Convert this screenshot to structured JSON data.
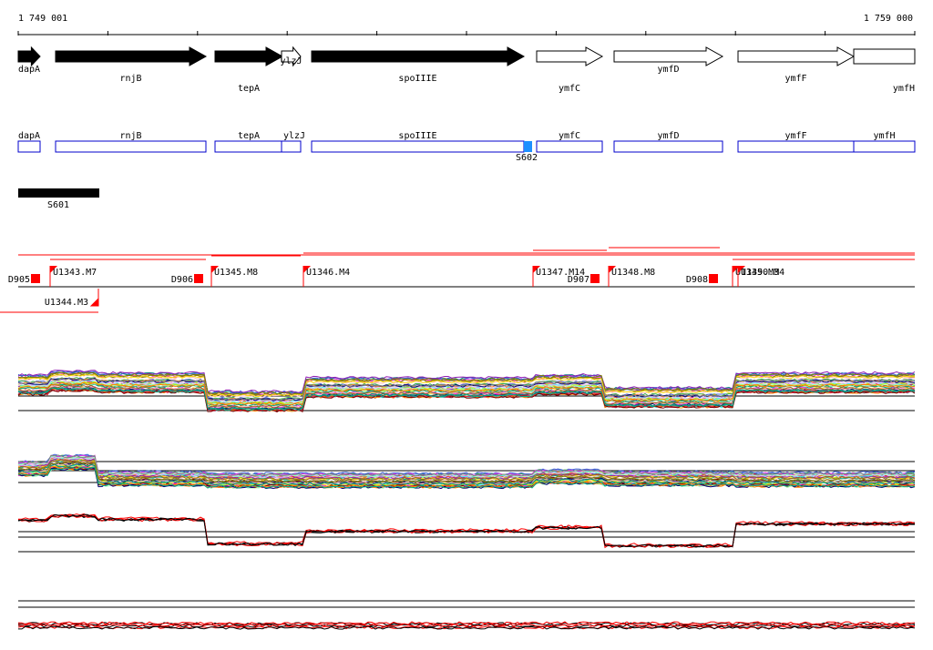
{
  "ruler": {
    "start_label": "1 749 001",
    "end_label": "1 759 000"
  },
  "genes_filled": [
    {
      "label": "dapA",
      "filled": true,
      "dir": "fwd"
    },
    {
      "label": "rnjB",
      "filled": true,
      "dir": "fwd"
    },
    {
      "label": "tepA",
      "filled": true,
      "dir": "fwd"
    },
    {
      "label": "ylzJ",
      "filled": false,
      "dir": "fwd"
    },
    {
      "label": "spoIIIE",
      "filled": true,
      "dir": "fwd"
    },
    {
      "label": "ymfC",
      "filled": false,
      "dir": "fwd"
    },
    {
      "label": "ymfD",
      "filled": false,
      "dir": "fwd"
    },
    {
      "label": "ymfF",
      "filled": false,
      "dir": "fwd"
    },
    {
      "label": "ymfH",
      "filled": false,
      "dir": "fwd"
    }
  ],
  "genes_boxes": [
    "dapA",
    "rnjB",
    "tepA",
    "ylzJ",
    "spoIIIE",
    "ymfC",
    "ymfD",
    "ymfF",
    "ymfH"
  ],
  "feature_s602": "S602",
  "feature_s601": "S601",
  "segments": [
    {
      "label": "D905"
    },
    {
      "label": "U1343.M7"
    },
    {
      "label": "U1344.M3"
    },
    {
      "label": "D906"
    },
    {
      "label": "U1345.M8"
    },
    {
      "label": "U1346.M4"
    },
    {
      "label": "U1347.M14"
    },
    {
      "label": "D907"
    },
    {
      "label": "U1348.M8"
    },
    {
      "label": "D908"
    },
    {
      "label": "U1349.M3"
    },
    {
      "label": "U1350.M4"
    }
  ],
  "colors": {
    "gene_fill": "#000000",
    "gene_box": "#0000cc",
    "s602": "#1e90ff",
    "segment_flag": "#ff0000",
    "ruler": "#000000"
  }
}
